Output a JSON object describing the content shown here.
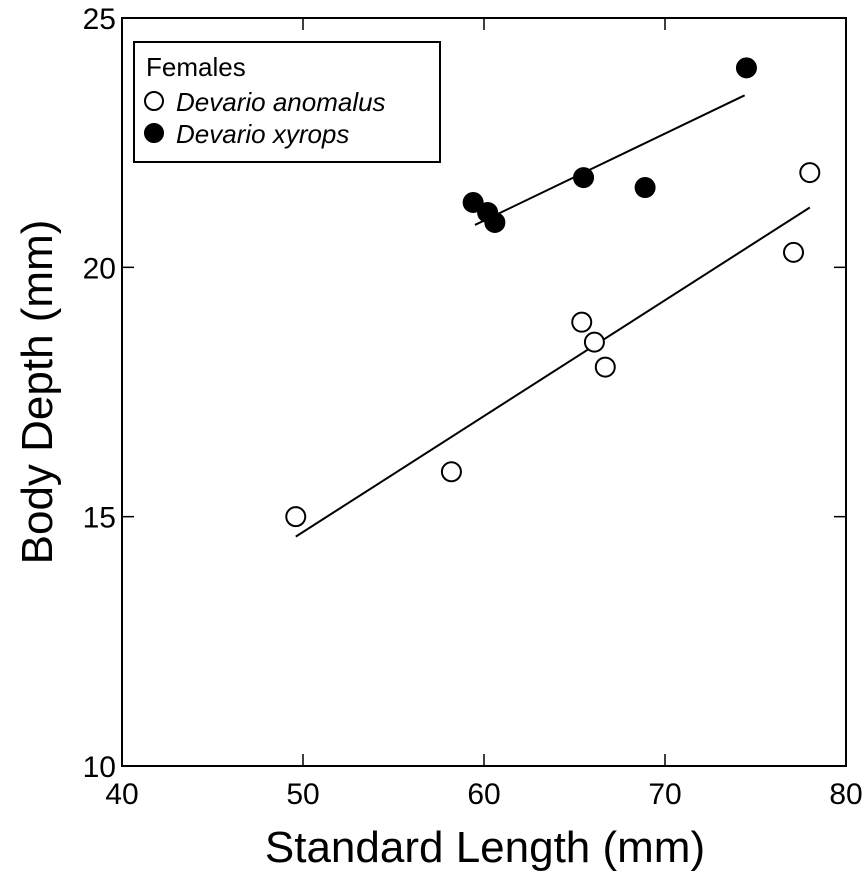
{
  "chart_data": {
    "type": "scatter",
    "xlabel": "Standard Length (mm)",
    "ylabel": "Body Depth (mm)",
    "xlim": [
      40,
      80
    ],
    "ylim": [
      10,
      25
    ],
    "xticks": [
      40,
      50,
      60,
      70,
      80
    ],
    "yticks": [
      10,
      15,
      20,
      25
    ],
    "grid": false,
    "legend": {
      "title": "Females",
      "placement": "top-left"
    },
    "series": [
      {
        "name": "Devario anomalus",
        "marker": "open-circle",
        "color": "#000000",
        "points": [
          {
            "x": 49.6,
            "y": 15.0
          },
          {
            "x": 58.2,
            "y": 15.9
          },
          {
            "x": 65.4,
            "y": 18.9
          },
          {
            "x": 66.1,
            "y": 18.5
          },
          {
            "x": 66.7,
            "y": 18.0
          },
          {
            "x": 77.1,
            "y": 20.3
          },
          {
            "x": 78.0,
            "y": 21.9
          }
        ],
        "fit": {
          "x1": 49.6,
          "y1": 14.6,
          "x2": 78.0,
          "y2": 21.2
        }
      },
      {
        "name": "Devario xyrops",
        "marker": "filled-circle",
        "color": "#000000",
        "points": [
          {
            "x": 59.4,
            "y": 21.3
          },
          {
            "x": 60.2,
            "y": 21.1
          },
          {
            "x": 60.6,
            "y": 20.9
          },
          {
            "x": 65.5,
            "y": 21.8
          },
          {
            "x": 68.9,
            "y": 21.6
          },
          {
            "x": 74.5,
            "y": 24.0
          }
        ],
        "fit": {
          "x1": 59.5,
          "y1": 20.85,
          "x2": 74.4,
          "y2": 23.45
        }
      }
    ]
  }
}
